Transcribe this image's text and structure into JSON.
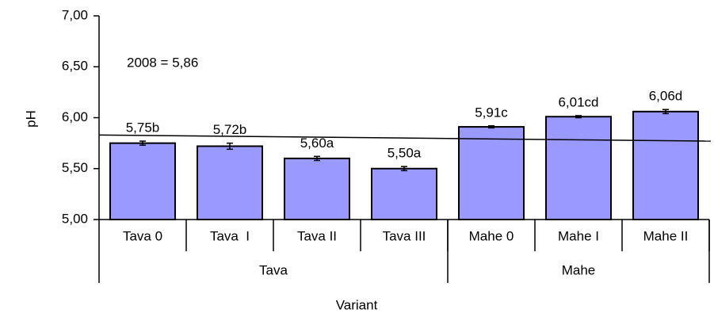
{
  "chart_data": {
    "type": "bar",
    "y_label": "pH",
    "x_label": "Variant",
    "annotation": "2008 = 5,86",
    "categories": [
      "Tava 0",
      "Tava  I",
      "Tava II",
      "Tava III",
      "Mahe 0",
      "Mahe I",
      "Mahe II"
    ],
    "groups": [
      {
        "name": "Tava",
        "span": 4
      },
      {
        "name": "Mahe",
        "span": 3
      }
    ],
    "values": [
      5.75,
      5.72,
      5.6,
      5.5,
      5.91,
      6.01,
      6.06
    ],
    "value_labels": [
      "5,75b",
      "5,72b",
      "5,60a",
      "5,50a",
      "5,91c",
      "6,01cd",
      "6,06d"
    ],
    "errors": [
      0.02,
      0.03,
      0.02,
      0.02,
      0.01,
      0.01,
      0.02
    ],
    "trend_line": [
      5.83,
      5.77
    ],
    "color": "#9999ff",
    "ylim": [
      5.0,
      7.0
    ],
    "yticks": [
      {
        "value": 5.0,
        "label": "5,00"
      },
      {
        "value": 5.5,
        "label": "5,50"
      },
      {
        "value": 6.0,
        "label": "6,00"
      },
      {
        "value": 6.5,
        "label": "6,50"
      },
      {
        "value": 7.0,
        "label": "7,00"
      }
    ],
    "grid": false
  }
}
